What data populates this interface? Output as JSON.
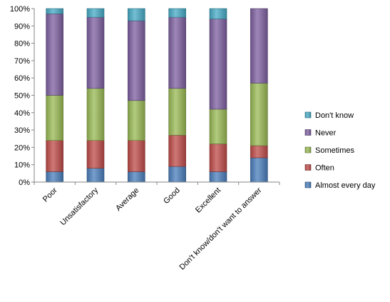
{
  "chart_data": {
    "type": "bar",
    "stacked": true,
    "percent": true,
    "categories": [
      "Poor",
      "Unsatisfactory",
      "Average",
      "Good",
      "Excellent",
      "Don't know/don't want to answer"
    ],
    "series": [
      {
        "name": "Almost every day",
        "color": "#4a7ebb",
        "values": [
          6,
          8,
          6,
          9,
          6,
          14
        ]
      },
      {
        "name": "Often",
        "color": "#be4b48",
        "values": [
          18,
          16,
          18,
          18,
          16,
          7
        ]
      },
      {
        "name": "Sometimes",
        "color": "#98b954",
        "values": [
          26,
          30,
          23,
          27,
          20,
          36
        ]
      },
      {
        "name": "Never",
        "color": "#7d5fa0",
        "values": [
          47,
          41,
          46,
          41,
          52,
          43
        ]
      },
      {
        "name": "Don't know",
        "color": "#46aac5",
        "values": [
          3,
          5,
          7,
          5,
          6,
          0
        ]
      }
    ],
    "ylim": [
      0,
      100
    ],
    "yticks": [
      "0%",
      "10%",
      "20%",
      "30%",
      "40%",
      "50%",
      "60%",
      "70%",
      "80%",
      "90%",
      "100%"
    ],
    "grid": false,
    "legend_position": "right"
  }
}
